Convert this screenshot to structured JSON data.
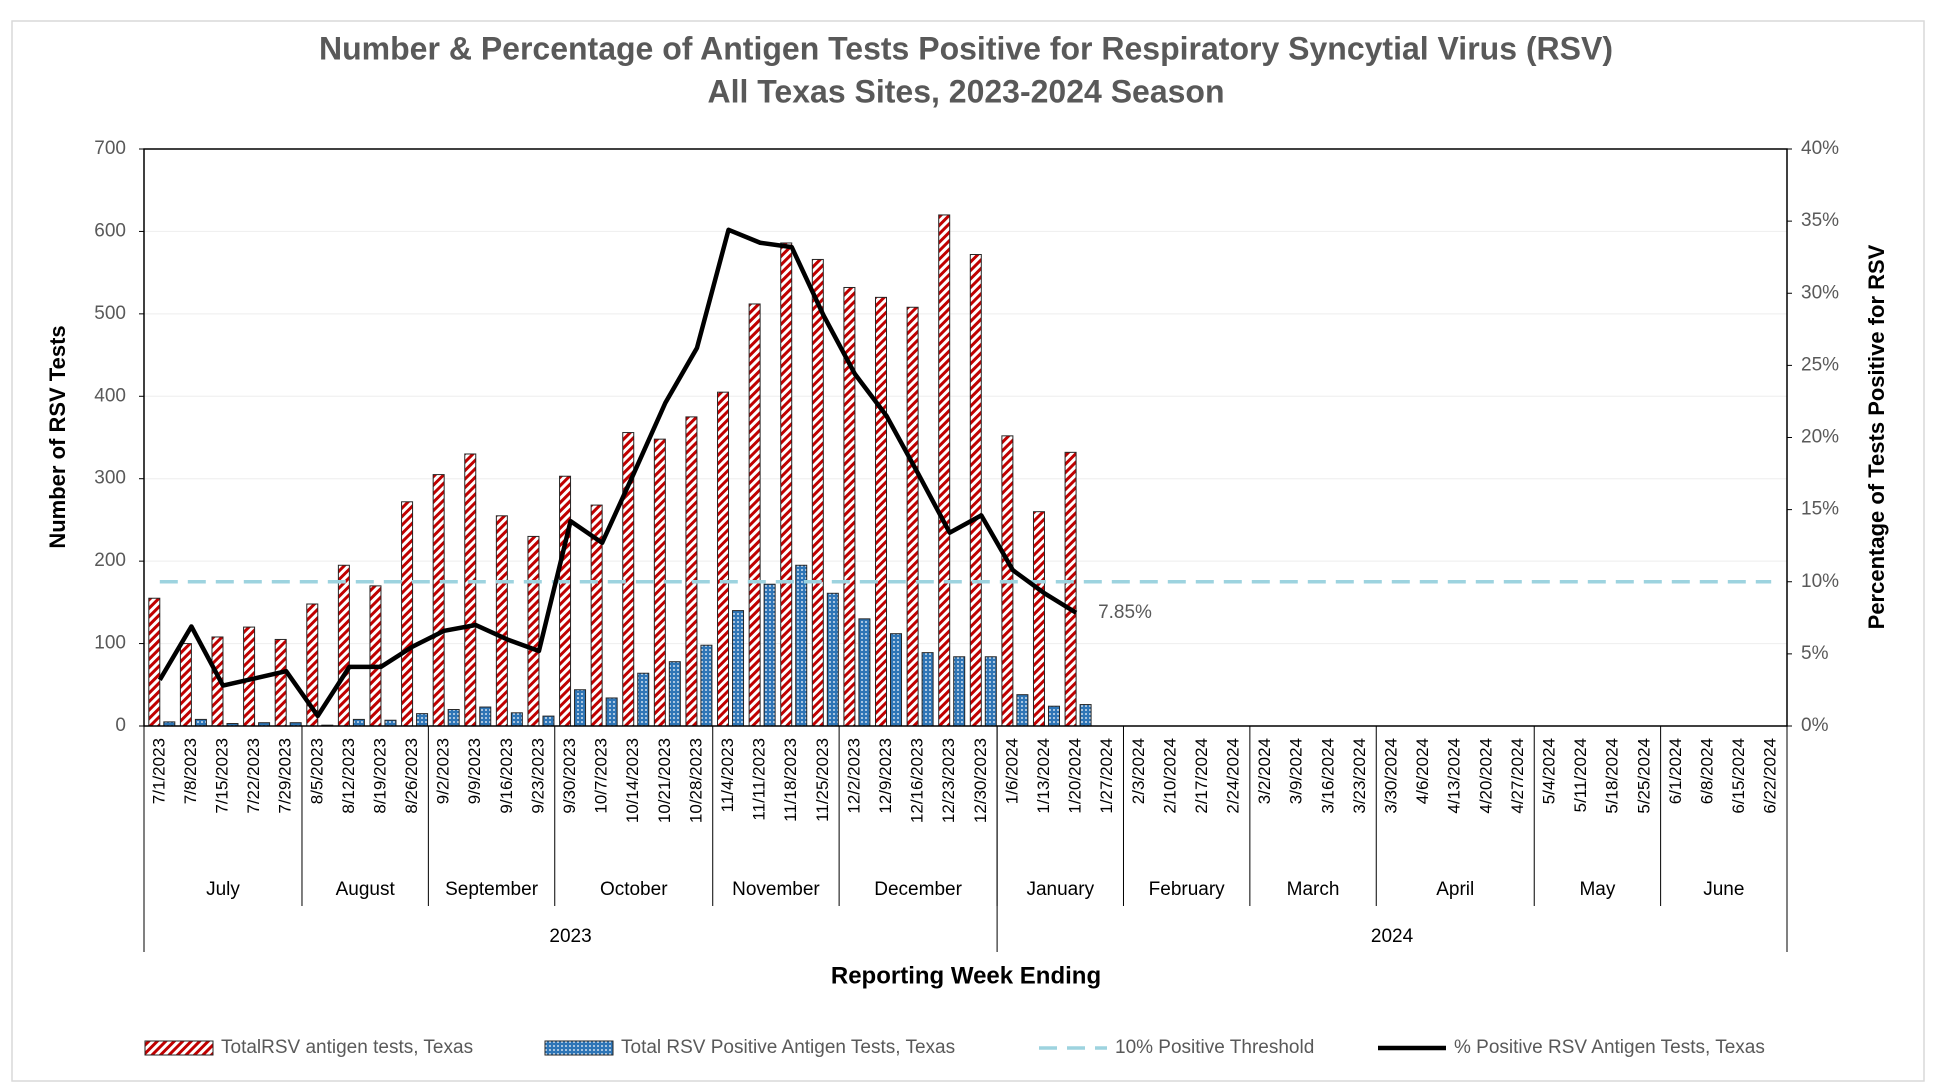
{
  "chart_data": {
    "type": "bar",
    "title": "Number & Percentage of Antigen Tests Positive for Respiratory Syncytial Virus (RSV)",
    "subtitle": "All Texas Sites, 2023-2024 Season",
    "xlabel": "Reporting Week Ending",
    "ylabel": "Number of RSV Tests",
    "y2label": "Percentage of Tests Positive for RSV",
    "categories": [
      "7/1/2023",
      "7/8/2023",
      "7/15/2023",
      "7/22/2023",
      "7/29/2023",
      "8/5/2023",
      "8/12/2023",
      "8/19/2023",
      "8/26/2023",
      "9/2/2023",
      "9/9/2023",
      "9/16/2023",
      "9/23/2023",
      "9/30/2023",
      "10/7/2023",
      "10/14/2023",
      "10/21/2023",
      "10/28/2023",
      "11/4/2023",
      "11/11/2023",
      "11/18/2023",
      "11/25/2023",
      "12/2/2023",
      "12/9/2023",
      "12/16/2023",
      "12/23/2023",
      "12/30/2023",
      "1/6/2024",
      "1/13/2024",
      "1/20/2024",
      "1/27/2024",
      "2/3/2024",
      "2/10/2024",
      "2/17/2024",
      "2/24/2024",
      "3/2/2024",
      "3/9/2024",
      "3/16/2024",
      "3/23/2024",
      "3/30/2024",
      "4/6/2024",
      "4/13/2024",
      "4/20/2024",
      "4/27/2024",
      "5/4/2024",
      "5/11/2024",
      "5/18/2024",
      "5/25/2024",
      "6/1/2024",
      "6/8/2024",
      "6/15/2024",
      "6/22/2024"
    ],
    "month_groups": [
      {
        "label": "July",
        "count": 5
      },
      {
        "label": "August",
        "count": 4
      },
      {
        "label": "September",
        "count": 4
      },
      {
        "label": "October",
        "count": 5
      },
      {
        "label": "November",
        "count": 4
      },
      {
        "label": "December",
        "count": 5
      },
      {
        "label": "January",
        "count": 4
      },
      {
        "label": "February",
        "count": 4
      },
      {
        "label": "March",
        "count": 4
      },
      {
        "label": "April",
        "count": 5
      },
      {
        "label": "May",
        "count": 4
      },
      {
        "label": "June",
        "count": 4
      }
    ],
    "year_groups": [
      {
        "label": "2023",
        "count": 27
      },
      {
        "label": "2024",
        "count": 25
      }
    ],
    "series": [
      {
        "name": "TotalRSV antigen tests, Texas",
        "type": "bar",
        "color": "#c00000",
        "values": [
          155,
          100,
          108,
          120,
          105,
          148,
          195,
          170,
          272,
          305,
          330,
          255,
          230,
          303,
          268,
          356,
          348,
          375,
          405,
          512,
          586,
          566,
          532,
          520,
          508,
          620,
          572,
          352,
          260,
          332,
          null,
          null,
          null,
          null,
          null,
          null,
          null,
          null,
          null,
          null,
          null,
          null,
          null,
          null,
          null,
          null,
          null,
          null,
          null,
          null,
          null,
          null
        ]
      },
      {
        "name": "Total RSV Positive Antigen Tests, Texas",
        "type": "bar",
        "color": "#2e75b6",
        "values": [
          5,
          8,
          3,
          4,
          4,
          1,
          8,
          7,
          15,
          20,
          23,
          16,
          12,
          44,
          34,
          64,
          78,
          98,
          140,
          172,
          195,
          161,
          130,
          112,
          89,
          84,
          84,
          38,
          24,
          26,
          null,
          null,
          null,
          null,
          null,
          null,
          null,
          null,
          null,
          null,
          null,
          null,
          null,
          null,
          null,
          null,
          null,
          null,
          null,
          null,
          null,
          null
        ]
      },
      {
        "name": "10% Positive Threshold",
        "type": "line",
        "dashed": true,
        "axis": "y2",
        "color": "#9dd3df",
        "values": [
          10,
          10,
          10,
          10,
          10,
          10,
          10,
          10,
          10,
          10,
          10,
          10,
          10,
          10,
          10,
          10,
          10,
          10,
          10,
          10,
          10,
          10,
          10,
          10,
          10,
          10,
          10,
          10,
          10,
          10,
          10,
          10,
          10,
          10,
          10,
          10,
          10,
          10,
          10,
          10,
          10,
          10,
          10,
          10,
          10,
          10,
          10,
          10,
          10,
          10,
          10,
          10
        ]
      },
      {
        "name": "% Positive RSV Antigen Tests, Texas",
        "type": "line",
        "axis": "y2",
        "color": "#000000",
        "values": [
          3.2,
          6.9,
          2.8,
          3.3,
          3.8,
          0.7,
          4.1,
          4.1,
          5.5,
          6.6,
          7.0,
          6.0,
          5.2,
          14.2,
          12.7,
          17.5,
          22.4,
          26.2,
          34.4,
          33.5,
          33.2,
          28.5,
          24.4,
          21.5,
          17.5,
          13.4,
          14.6,
          10.8,
          9.2,
          7.85,
          null,
          null,
          null,
          null,
          null,
          null,
          null,
          null,
          null,
          null,
          null,
          null,
          null,
          null,
          null,
          null,
          null,
          null,
          null,
          null,
          null,
          null
        ],
        "value_labels": [
          null,
          null,
          null,
          null,
          null,
          null,
          null,
          null,
          null,
          null,
          null,
          null,
          null,
          null,
          null,
          null,
          null,
          null,
          null,
          null,
          null,
          null,
          null,
          null,
          null,
          null,
          null,
          null,
          null,
          "7.85%",
          null,
          null,
          null,
          null,
          null,
          null,
          null,
          null,
          null,
          null,
          null,
          null,
          null,
          null,
          null,
          null,
          null,
          null,
          null,
          null,
          null,
          null
        ]
      }
    ],
    "ylim": [
      0,
      700
    ],
    "yticks": [
      0,
      100,
      200,
      300,
      400,
      500,
      600,
      700
    ],
    "y2lim": [
      0,
      40
    ],
    "y2ticks": [
      {
        "value": 0,
        "label": "0%"
      },
      {
        "value": 5,
        "label": "5%"
      },
      {
        "value": 10,
        "label": "10%"
      },
      {
        "value": 15,
        "label": "15%"
      },
      {
        "value": 20,
        "label": "20%"
      },
      {
        "value": 25,
        "label": "25%"
      },
      {
        "value": 30,
        "label": "30%"
      },
      {
        "value": 35,
        "label": "35%"
      },
      {
        "value": 40,
        "label": "40%"
      }
    ],
    "grid": true,
    "legend": "bottom"
  }
}
